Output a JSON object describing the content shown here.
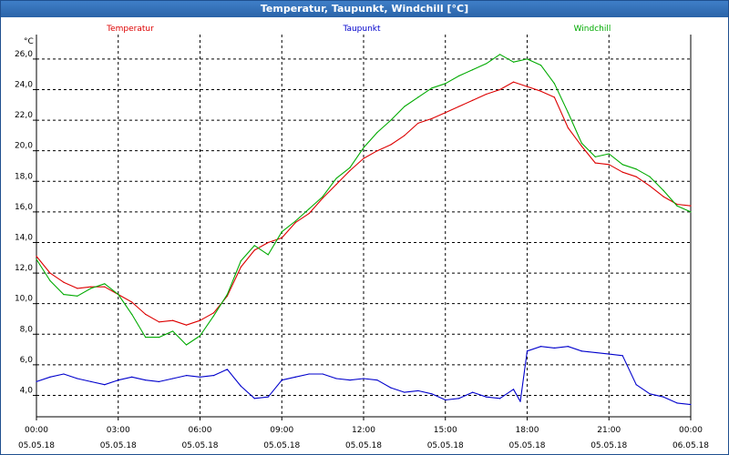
{
  "window": {
    "title": "Temperatur, Taupunkt, Windchill [°C]"
  },
  "chart_data": {
    "type": "line",
    "title": "Temperatur, Taupunkt, Windchill [°C]",
    "ylabel": "°C",
    "ylim": [
      2.6,
      27.6
    ],
    "xlim": [
      0,
      24
    ],
    "grid": true,
    "legend": "top",
    "y_ticks": [
      {
        "v": 4,
        "label": "4,0"
      },
      {
        "v": 6,
        "label": "6,0"
      },
      {
        "v": 8,
        "label": "8,0"
      },
      {
        "v": 10,
        "label": "10,0"
      },
      {
        "v": 12,
        "label": "12,0"
      },
      {
        "v": 14,
        "label": "14,0"
      },
      {
        "v": 16,
        "label": "16,0"
      },
      {
        "v": 18,
        "label": "18,0"
      },
      {
        "v": 20,
        "label": "20,0"
      },
      {
        "v": 22,
        "label": "22,0"
      },
      {
        "v": 24,
        "label": "24,0"
      },
      {
        "v": 26,
        "label": "26,0"
      }
    ],
    "x_ticks": [
      {
        "v": 0,
        "time": "00:00",
        "date": "05.05.18"
      },
      {
        "v": 3,
        "time": "03:00",
        "date": "05.05.18"
      },
      {
        "v": 6,
        "time": "06:00",
        "date": "05.05.18"
      },
      {
        "v": 9,
        "time": "09:00",
        "date": "05.05.18"
      },
      {
        "v": 12,
        "time": "12:00",
        "date": "05.05.18"
      },
      {
        "v": 15,
        "time": "15:00",
        "date": "05.05.18"
      },
      {
        "v": 18,
        "time": "18:00",
        "date": "05.05.18"
      },
      {
        "v": 21,
        "time": "21:00",
        "date": "05.05.18"
      },
      {
        "v": 24,
        "time": "00:00",
        "date": "06.05.18"
      }
    ],
    "series": [
      {
        "name": "Temperatur",
        "color": "#dd0000",
        "x": [
          0,
          0.5,
          1,
          1.5,
          2,
          2.5,
          3,
          3.5,
          4,
          4.5,
          5,
          5.5,
          6,
          6.5,
          7,
          7.5,
          8,
          8.5,
          9,
          9.5,
          10,
          10.5,
          11,
          11.5,
          12,
          12.5,
          13,
          13.5,
          14,
          14.5,
          15,
          15.5,
          16,
          16.5,
          17,
          17.5,
          18,
          18.5,
          19,
          19.5,
          20,
          20.5,
          21,
          21.5,
          22,
          22.5,
          23,
          23.5,
          24
        ],
        "values": [
          13.1,
          12.0,
          11.4,
          11.0,
          11.1,
          11.1,
          10.6,
          10.1,
          9.3,
          8.8,
          8.9,
          8.6,
          8.9,
          9.4,
          10.5,
          12.4,
          13.5,
          14.0,
          14.3,
          15.3,
          15.9,
          16.9,
          17.8,
          18.7,
          19.5,
          20.0,
          20.4,
          21.0,
          21.8,
          22.1,
          22.5,
          22.9,
          23.3,
          23.7,
          24.0,
          24.5,
          24.2,
          23.9,
          23.5,
          21.5,
          20.3,
          19.2,
          19.1,
          18.6,
          18.3,
          17.7,
          17.0,
          16.5,
          16.4
        ]
      },
      {
        "name": "Taupunkt",
        "color": "#0000cc",
        "x": [
          0,
          0.5,
          1,
          1.5,
          2,
          2.5,
          3,
          3.5,
          4,
          4.5,
          5,
          5.5,
          6,
          6.5,
          7,
          7.5,
          8,
          8.5,
          9,
          9.5,
          10,
          10.5,
          11,
          11.5,
          12,
          12.5,
          13,
          13.5,
          14,
          14.5,
          15,
          15.5,
          16,
          16.5,
          17,
          17.5,
          17.75,
          18,
          18.5,
          19,
          19.5,
          20,
          20.5,
          21,
          21.5,
          22,
          22.5,
          23,
          23.5,
          24
        ],
        "values": [
          4.9,
          5.2,
          5.4,
          5.1,
          4.9,
          4.7,
          5.0,
          5.2,
          5.0,
          4.9,
          5.1,
          5.3,
          5.2,
          5.3,
          5.7,
          4.6,
          3.8,
          3.9,
          5.0,
          5.2,
          5.4,
          5.4,
          5.1,
          5.0,
          5.1,
          5.0,
          4.5,
          4.2,
          4.3,
          4.1,
          3.7,
          3.8,
          4.2,
          3.9,
          3.8,
          4.4,
          3.6,
          6.9,
          7.2,
          7.1,
          7.2,
          6.9,
          6.8,
          6.7,
          6.6,
          4.7,
          4.1,
          3.9,
          3.5,
          3.4
        ]
      },
      {
        "name": "Windchill",
        "color": "#00aa00",
        "x": [
          0,
          0.5,
          1,
          1.5,
          2,
          2.5,
          3,
          3.5,
          4,
          4.5,
          5,
          5.5,
          6,
          6.5,
          7,
          7.5,
          8,
          8.5,
          9,
          9.5,
          10,
          10.5,
          11,
          11.5,
          12,
          12.5,
          13,
          13.5,
          14,
          14.5,
          15,
          15.5,
          16,
          16.5,
          17,
          17.5,
          18,
          18.5,
          19,
          19.5,
          20,
          20.5,
          21,
          21.5,
          22,
          22.5,
          23,
          23.5,
          24
        ],
        "values": [
          12.9,
          11.5,
          10.6,
          10.5,
          11.0,
          11.3,
          10.6,
          9.3,
          7.8,
          7.8,
          8.2,
          7.3,
          7.9,
          9.2,
          10.6,
          12.8,
          13.8,
          13.2,
          14.7,
          15.4,
          16.2,
          17.0,
          18.2,
          18.9,
          20.2,
          21.2,
          22.0,
          22.9,
          23.5,
          24.1,
          24.4,
          24.9,
          25.3,
          25.7,
          26.3,
          25.8,
          26.0,
          25.6,
          24.4,
          22.5,
          20.5,
          19.6,
          19.8,
          19.1,
          18.8,
          18.3,
          17.4,
          16.4,
          16.0
        ]
      }
    ]
  }
}
